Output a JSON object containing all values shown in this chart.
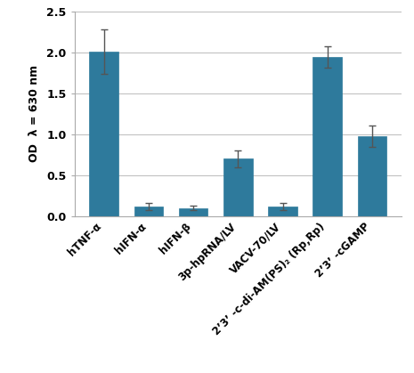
{
  "categories": [
    "hTNF-α",
    "hIFN-α",
    "hIFN-β",
    "3p-hpRNA/LV",
    "VACV-70/LV",
    "2’3’ -c-di-AM(PS)₂ (Rp,Rp)",
    "2’3’ -cGAMP"
  ],
  "values": [
    2.01,
    0.12,
    0.1,
    0.7,
    0.12,
    1.94,
    0.98
  ],
  "errors": [
    0.27,
    0.04,
    0.025,
    0.1,
    0.04,
    0.13,
    0.13
  ],
  "bar_color": "#2e7a9c",
  "bar_edgecolor": "#2e7a9c",
  "ylabel_top": "OD",
  "ylabel_sub": "λ = 630 nm",
  "ylim": [
    0.0,
    2.5
  ],
  "yticks": [
    0.0,
    0.5,
    1.0,
    1.5,
    2.0,
    2.5
  ],
  "background_color": "#ffffff",
  "grid_color": "#bbbbbb",
  "error_cap_size": 3,
  "bar_width": 0.65,
  "label_fontsize": 8.5,
  "label_fontweight": "bold",
  "label_rotation": 45
}
